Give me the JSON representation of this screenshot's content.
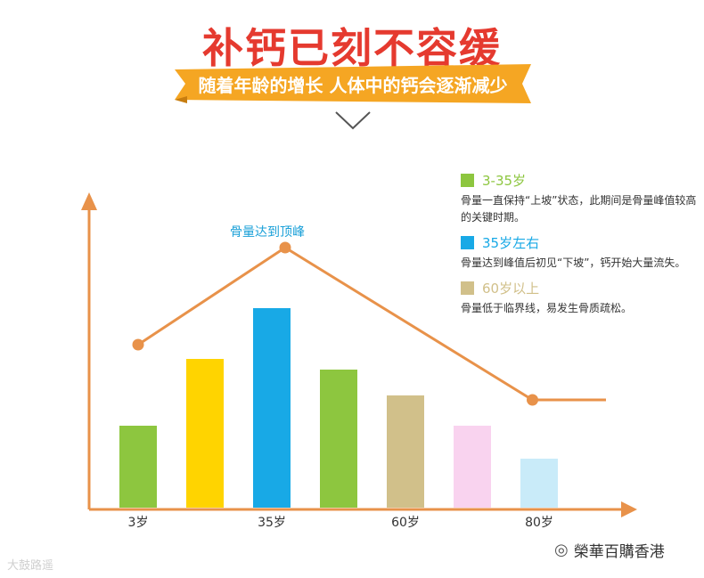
{
  "header": {
    "title": "补钙已刻不容缓",
    "subtitle": "随着年龄的增长 人体中的钙会逐渐减少"
  },
  "colors": {
    "title": "#e53a2f",
    "ribbon": "#f5a623",
    "axis": "#e8924a",
    "trend_line": "#e8924a"
  },
  "legend": {
    "items": [
      {
        "title": "3-35岁",
        "color": "#8dc63f",
        "desc": "骨量一直保持“上坡”状态，此期间是骨量峰值较高的关键时期。"
      },
      {
        "title": "35岁左右",
        "color": "#18a9e6",
        "desc": "骨量达到峰值后初见“下坡”，钙开始大量流失。"
      },
      {
        "title": "60岁以上",
        "color": "#d1c08a",
        "desc": "骨量低于临界线，易发生骨质疏松。"
      }
    ]
  },
  "chart_data": {
    "type": "bar",
    "categories": [
      "",
      "",
      "",
      "",
      "",
      "",
      ""
    ],
    "values": [
      0.92,
      1.67,
      2.24,
      1.55,
      1.26,
      0.92,
      0.55
    ],
    "bar_colors": [
      "#8dc63f",
      "#ffd400",
      "#18a9e6",
      "#8dc63f",
      "#d1c08a",
      "#f9d3ef",
      "#c9ebf9"
    ],
    "x_tick_labels": [
      "3岁",
      "35岁",
      "60岁",
      "80岁"
    ],
    "ylim": [
      0,
      3.6
    ],
    "trend_line": [
      {
        "x": 0,
        "y": 1.83,
        "marker": true
      },
      {
        "x": 2.2,
        "y": 2.92,
        "marker": true
      },
      {
        "x": 5.9,
        "y": 1.21,
        "marker": true
      },
      {
        "x": 7.0,
        "y": 1.21,
        "marker": false
      }
    ],
    "annotation": "骨量达到顶峰",
    "grid": false,
    "legend_position": "top-right"
  },
  "watermarks": {
    "left": "大鼓路遥",
    "right": "榮華百購香港"
  }
}
